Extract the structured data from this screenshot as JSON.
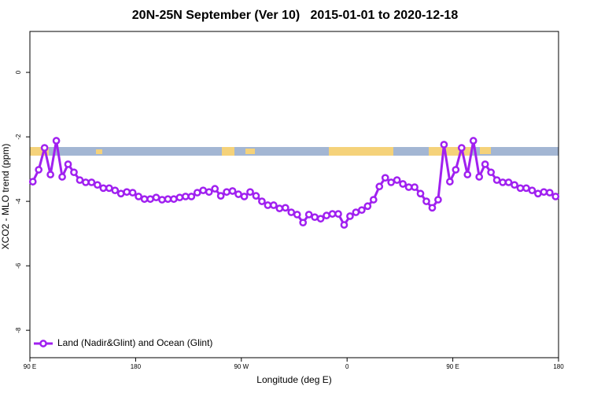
{
  "chart_data": {
    "type": "line",
    "title": "20N-25N September (Ver 10)   2015-01-01 to 2020-12-18",
    "x_label": "Longitude (deg E)",
    "y_label": "XCO2 - MLO trend (ppm)",
    "x": [
      92.5,
      97.5,
      102.5,
      107.5,
      112.5,
      117.5,
      122.5,
      127.5,
      132.5,
      137.5,
      142.5,
      147.5,
      152.5,
      157.5,
      162.5,
      167.5,
      172.5,
      177.5,
      182.5,
      187.5,
      192.5,
      197.5,
      202.5,
      207.5,
      212.5,
      217.5,
      222.5,
      227.5,
      232.5,
      237.5,
      242.5,
      247.5,
      252.5,
      257.5,
      262.5,
      267.5,
      272.5,
      277.5,
      282.5,
      287.5,
      292.5,
      297.5,
      302.5,
      307.5,
      312.5,
      317.5,
      322.5,
      327.5,
      332.5,
      337.5,
      342.5,
      347.5,
      352.5,
      357.5,
      362.5,
      367.5,
      372.5,
      377.5,
      382.5,
      387.5,
      392.5,
      397.5,
      402.5,
      407.5,
      412.5,
      417.5,
      422.5,
      427.5,
      432.5,
      437.5,
      442.5,
      447.5,
      452.5,
      457.5,
      462.5,
      467.5,
      472.5,
      477.5,
      482.5,
      487.5,
      492.5,
      497.5,
      502.5,
      507.5,
      512.5,
      517.5,
      522.5,
      527.5,
      532.5,
      537.5
    ],
    "series": [
      {
        "name": "Land (Nadir&Glint) and Ocean (Glint)",
        "color": "#a020f0",
        "values": [
          -3.39,
          -3.02,
          -2.34,
          -3.17,
          -2.12,
          -3.24,
          -2.85,
          -3.1,
          -3.34,
          -3.41,
          -3.41,
          -3.49,
          -3.59,
          -3.59,
          -3.66,
          -3.76,
          -3.71,
          -3.73,
          -3.85,
          -3.93,
          -3.93,
          -3.88,
          -3.95,
          -3.93,
          -3.93,
          -3.88,
          -3.85,
          -3.85,
          -3.73,
          -3.66,
          -3.71,
          -3.61,
          -3.83,
          -3.71,
          -3.68,
          -3.78,
          -3.85,
          -3.71,
          -3.83,
          -4.0,
          -4.12,
          -4.12,
          -4.22,
          -4.2,
          -4.34,
          -4.41,
          -4.66,
          -4.41,
          -4.49,
          -4.54,
          -4.44,
          -4.39,
          -4.39,
          -4.73,
          -4.46,
          -4.34,
          -4.27,
          -4.15,
          -3.95,
          -3.54,
          -3.27,
          -3.41,
          -3.34,
          -3.46,
          -3.56,
          -3.56,
          -3.76,
          -4.0,
          -4.2,
          -3.95,
          -2.24,
          -3.39,
          -3.02,
          -2.34,
          -3.17,
          -2.12,
          -3.24,
          -2.85,
          -3.1,
          -3.34,
          -3.41,
          -3.41,
          -3.49,
          -3.59,
          -3.59,
          -3.66,
          -3.76,
          -3.71,
          -3.73,
          -3.85
        ]
      }
    ],
    "xlim": [
      90,
      540
    ],
    "xticks": [
      {
        "value": 90,
        "label": "90 E"
      },
      {
        "value": 180,
        "label": "180"
      },
      {
        "value": 270,
        "label": "90 W"
      },
      {
        "value": 360,
        "label": "0"
      },
      {
        "value": 450,
        "label": "90 E"
      },
      {
        "value": 540,
        "label": "180"
      }
    ],
    "ylim": [
      -8.85,
      1.27
    ],
    "yticks": [
      0,
      -2,
      -4,
      -6,
      -8
    ],
    "legend": "bottomleft"
  }
}
